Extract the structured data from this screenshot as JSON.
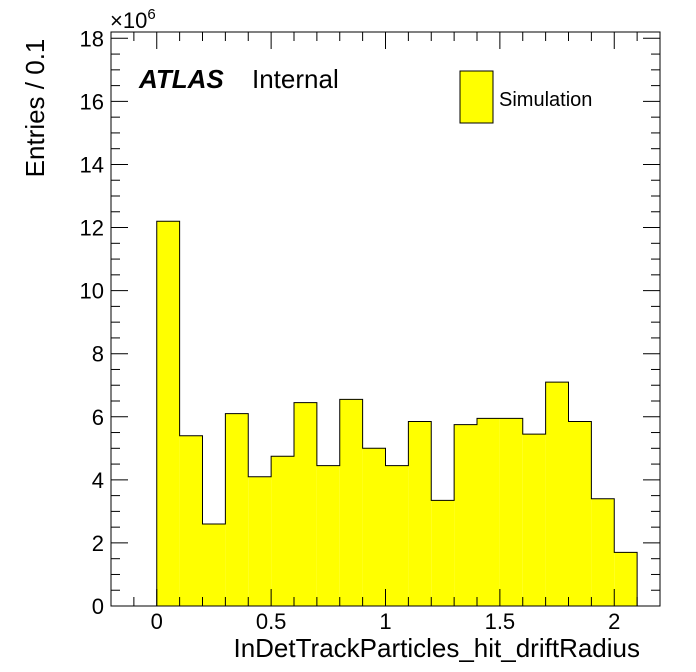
{
  "chart_data": {
    "type": "bar",
    "style": "histogram",
    "xlabel": "InDetTrackParticles_hit_driftRadius",
    "ylabel": "Entries / 0.1",
    "y_multiplier": "×10",
    "y_exponent": "6",
    "xlim": [
      -0.2,
      2.2
    ],
    "ylim": [
      0,
      18.2
    ],
    "x_ticks": [
      0,
      0.5,
      1,
      1.5,
      2
    ],
    "x_tick_labels": [
      "0",
      "0.5",
      "1",
      "1.5",
      "2"
    ],
    "y_ticks": [
      0,
      2,
      4,
      6,
      8,
      10,
      12,
      14,
      16,
      18
    ],
    "y_tick_labels": [
      "0",
      "2",
      "4",
      "6",
      "8",
      "10",
      "12",
      "14",
      "16",
      "18"
    ],
    "bin_edges": [
      0,
      0.1,
      0.2,
      0.3,
      0.4,
      0.5,
      0.6,
      0.7,
      0.8,
      0.9,
      1.0,
      1.1,
      1.2,
      1.3,
      1.4,
      1.5,
      1.6,
      1.7,
      1.8,
      1.9,
      2.0,
      2.1
    ],
    "series": [
      {
        "name": "Simulation",
        "color": "#ffff00",
        "values": [
          12.2,
          5.4,
          2.6,
          6.1,
          4.1,
          4.75,
          6.45,
          4.45,
          6.55,
          5.0,
          4.45,
          5.85,
          3.35,
          5.75,
          5.95,
          5.95,
          5.45,
          7.1,
          5.85,
          3.4,
          1.7
        ]
      }
    ]
  },
  "atlas_label": "ATLAS",
  "atlas_status": "Internal",
  "legend": {
    "label": "Simulation",
    "color": "#ffff00"
  }
}
